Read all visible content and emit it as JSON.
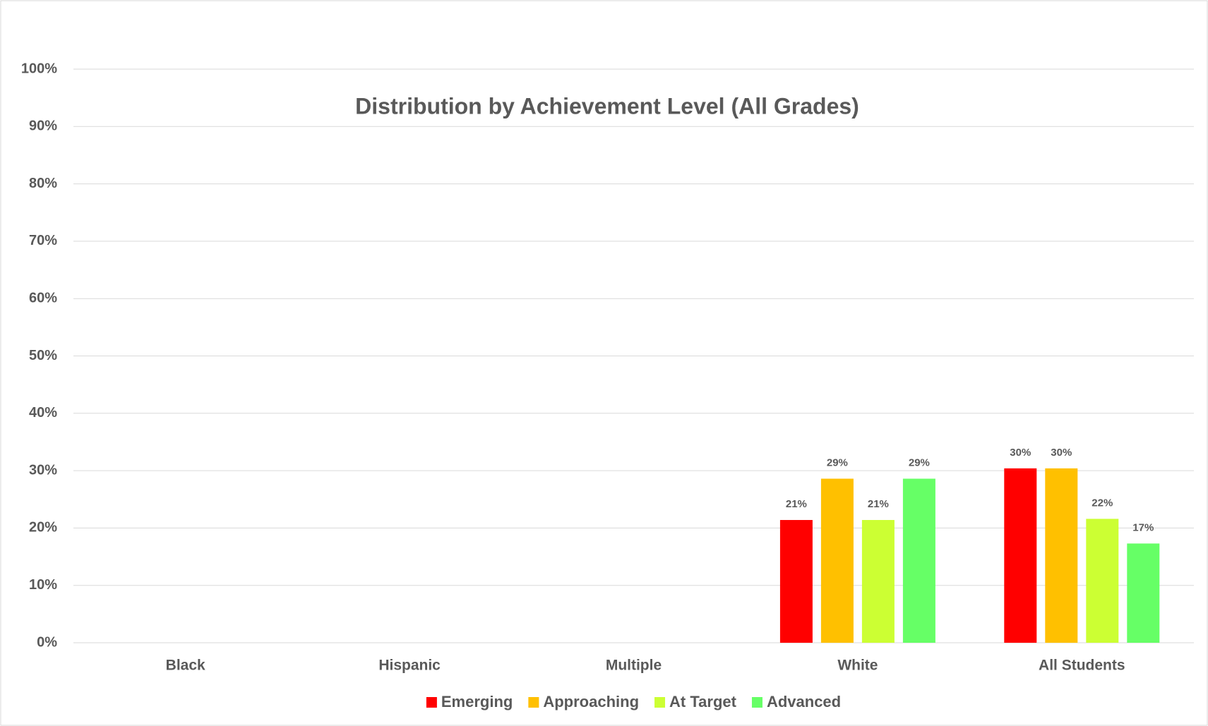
{
  "chart_data": {
    "type": "bar",
    "title": "Distribution by Achievement Level (All Grades)",
    "categories": [
      "Black",
      "Hispanic",
      "Multiple",
      "White",
      "All Students"
    ],
    "series": [
      {
        "name": "Emerging",
        "color": "#ff0000",
        "values": [
          null,
          null,
          null,
          21.4,
          30.4
        ],
        "value_labels": [
          null,
          null,
          null,
          "21%",
          "30%"
        ]
      },
      {
        "name": "Approaching",
        "color": "#ffc000",
        "values": [
          null,
          null,
          null,
          28.6,
          30.4
        ],
        "value_labels": [
          null,
          null,
          null,
          "29%",
          "30%"
        ]
      },
      {
        "name": "At Target",
        "color": "#ccff33",
        "values": [
          null,
          null,
          null,
          21.4,
          21.6
        ],
        "value_labels": [
          null,
          null,
          null,
          "21%",
          "22%"
        ]
      },
      {
        "name": "Advanced",
        "color": "#66ff66",
        "values": [
          null,
          null,
          null,
          28.6,
          17.3
        ],
        "value_labels": [
          null,
          null,
          null,
          "29%",
          "17%"
        ]
      }
    ],
    "ylim": [
      0,
      100
    ],
    "yticks": [
      {
        "value": 0,
        "label": "0%"
      },
      {
        "value": 10,
        "label": "10%"
      },
      {
        "value": 20,
        "label": "20%"
      },
      {
        "value": 30,
        "label": "30%"
      },
      {
        "value": 40,
        "label": "40%"
      },
      {
        "value": 50,
        "label": "50%"
      },
      {
        "value": 60,
        "label": "60%"
      },
      {
        "value": 70,
        "label": "70%"
      },
      {
        "value": 80,
        "label": "80%"
      },
      {
        "value": 90,
        "label": "90%"
      },
      {
        "value": 100,
        "label": "100%"
      }
    ],
    "grid": true,
    "legend": "bottom"
  }
}
